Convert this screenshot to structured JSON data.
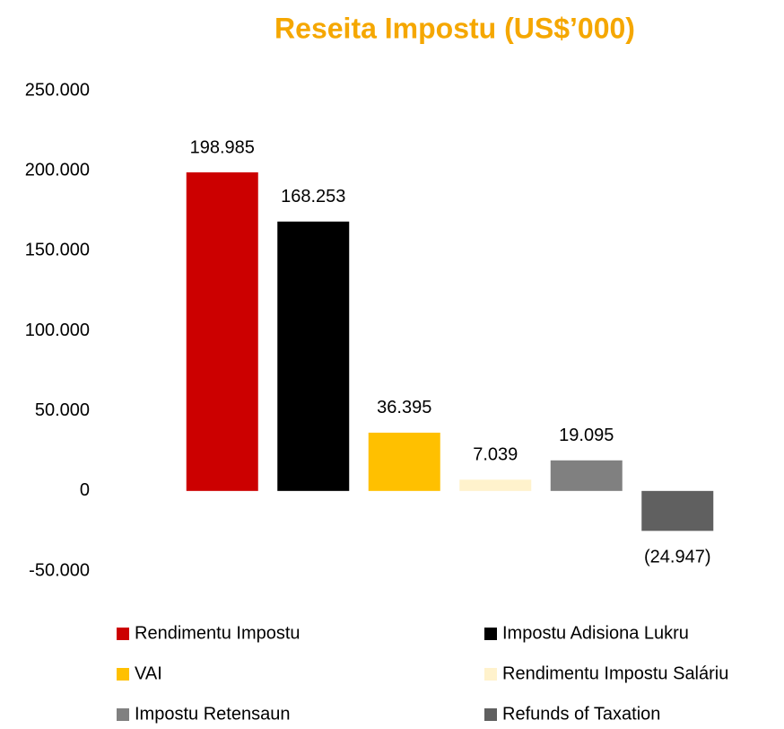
{
  "chart_data": {
    "type": "bar",
    "title": "Reseita Impostu (US$’000)",
    "categories": [
      "Rendimentu Impostu",
      "Impostu Adisiona Lukru",
      "VAI",
      "Rendimentu Impostu Saláriu",
      "Impostu Retensaun",
      "Refunds of Taxation"
    ],
    "values": [
      198985,
      168253,
      36395,
      7039,
      19095,
      -24947
    ],
    "value_labels": [
      "198.985",
      "168.253",
      "36.395",
      "7.039",
      "19.095",
      "(24.947)"
    ],
    "colors": [
      "#cc0000",
      "#000000",
      "#ffc000",
      "#fff2cc",
      "#808080",
      "#606060"
    ],
    "ylim": [
      -50000,
      250000
    ],
    "yticks": [
      {
        "value": -50000,
        "label": "-50.000"
      },
      0,
      {
        "value": 50000,
        "label": "50.000"
      },
      {
        "value": 100000,
        "label": "100.000"
      },
      {
        "value": 150000,
        "label": "150.000"
      },
      {
        "value": 200000,
        "label": "200.000"
      },
      {
        "value": 250000,
        "label": "250.000"
      }
    ],
    "grid": false,
    "legend": "bottom"
  }
}
